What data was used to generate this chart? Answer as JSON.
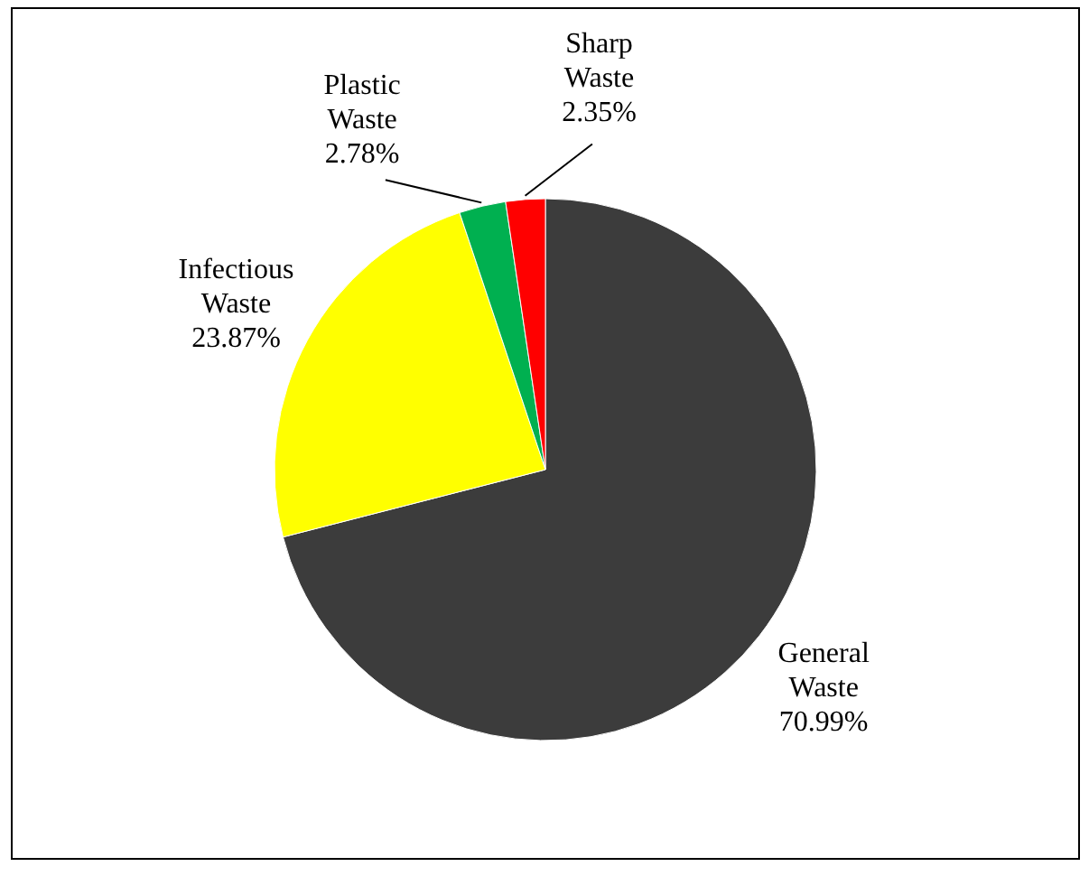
{
  "chart_data": {
    "type": "pie",
    "categories": [
      "General Waste",
      "Infectious Waste",
      "Plastic Waste",
      "Sharp Waste"
    ],
    "values": [
      70.99,
      23.87,
      2.78,
      2.35
    ],
    "value_labels": [
      "70.99%",
      "23.87%",
      "2.78%",
      "2.35%"
    ],
    "colors": [
      "#3c3c3c",
      "#ffff00",
      "#00b050",
      "#ff0000"
    ]
  }
}
